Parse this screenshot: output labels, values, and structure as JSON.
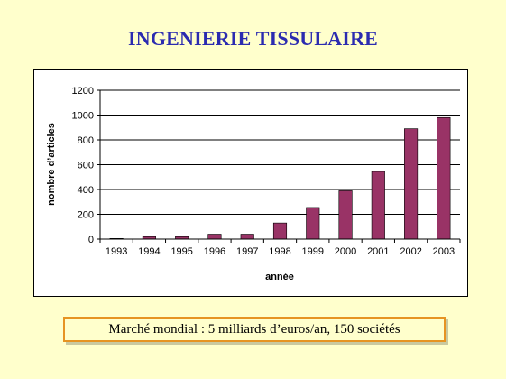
{
  "slide": {
    "title": "INGENIERIE TISSULAIRE",
    "footer": "Marché mondial : 5 milliards d’euros/an, 150 sociétés"
  },
  "colors": {
    "background": "#ffffcc",
    "title": "#2b2bb0",
    "bar": "#993366",
    "footer_border": "#e69422"
  },
  "chart_data": {
    "type": "bar",
    "categories": [
      "1993",
      "1994",
      "1995",
      "1996",
      "1997",
      "1998",
      "1999",
      "2000",
      "2001",
      "2002",
      "2003"
    ],
    "values": [
      5,
      20,
      20,
      40,
      40,
      130,
      255,
      390,
      545,
      890,
      980
    ],
    "title": "",
    "xlabel": "année",
    "ylabel": "nombre d’articles",
    "ylim": [
      0,
      1200
    ],
    "yticks": [
      0,
      200,
      400,
      600,
      800,
      1000,
      1200
    ],
    "grid": true,
    "legend": "none"
  }
}
